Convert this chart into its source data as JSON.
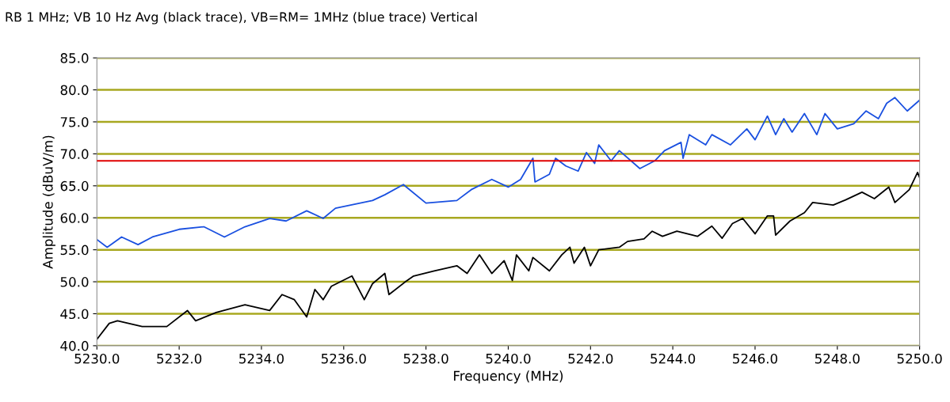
{
  "chart_data": {
    "type": "line",
    "title": "RB 1 MHz; VB 10 Hz Avg (black trace), VB=RM= 1MHz (blue trace) Vertical",
    "xlabel": "Frequency (MHz)",
    "ylabel": "Amplitude (dBuV/m)",
    "xlim": [
      5230,
      5250
    ],
    "ylim": [
      40,
      85
    ],
    "xticks": [
      {
        "value": 5230,
        "label": "5230.0"
      },
      {
        "value": 5232,
        "label": "5232.0"
      },
      {
        "value": 5234,
        "label": "5234.0"
      },
      {
        "value": 5236,
        "label": "5236.0"
      },
      {
        "value": 5238,
        "label": "5238.0"
      },
      {
        "value": 5240,
        "label": "5240.0"
      },
      {
        "value": 5242,
        "label": "5242.0"
      },
      {
        "value": 5244,
        "label": "5244.0"
      },
      {
        "value": 5246,
        "label": "5246.0"
      },
      {
        "value": 5248,
        "label": "5248.0"
      },
      {
        "value": 5250,
        "label": "5250.0"
      }
    ],
    "yticks": [
      {
        "value": 40,
        "label": "40.0"
      },
      {
        "value": 45,
        "label": "45.0"
      },
      {
        "value": 50,
        "label": "50.0"
      },
      {
        "value": 55,
        "label": "55.0"
      },
      {
        "value": 60,
        "label": "60.0"
      },
      {
        "value": 65,
        "label": "65.0"
      },
      {
        "value": 70,
        "label": "70.0"
      },
      {
        "value": 75,
        "label": "75.0"
      },
      {
        "value": 80,
        "label": "80.0"
      },
      {
        "value": 85,
        "label": "85.0"
      }
    ],
    "grid": "y",
    "ref_lines": [
      {
        "axis": "y",
        "value": 68.9,
        "color": "#e00000"
      }
    ],
    "series": [
      {
        "color": "#1a50e0",
        "x": [
          5230.0,
          5230.25,
          5230.6,
          5231.0,
          5231.35,
          5232.0,
          5232.6,
          5233.1,
          5233.6,
          5234.2,
          5234.6,
          5235.1,
          5235.5,
          5235.8,
          5236.4,
          5236.7,
          5237.0,
          5237.45,
          5238.0,
          5238.75,
          5239.1,
          5239.6,
          5240.0,
          5240.3,
          5240.6,
          5240.65,
          5241.0,
          5241.15,
          5241.4,
          5241.7,
          5241.9,
          5242.1,
          5242.2,
          5242.5,
          5242.7,
          5243.2,
          5243.56,
          5243.8,
          5244.2,
          5244.25,
          5244.4,
          5244.8,
          5244.95,
          5245.4,
          5245.8,
          5246.0,
          5246.3,
          5246.5,
          5246.7,
          5246.9,
          5247.2,
          5247.5,
          5247.7,
          5248.0,
          5248.4,
          5248.7,
          5249.0,
          5249.2,
          5249.4,
          5249.7,
          5250.0
        ],
        "values": [
          56.6,
          55.4,
          57.0,
          55.8,
          57.0,
          58.2,
          58.6,
          57.0,
          58.6,
          59.9,
          59.5,
          61.1,
          59.9,
          61.5,
          62.3,
          62.7,
          63.6,
          65.2,
          62.3,
          62.7,
          64.4,
          66.0,
          64.8,
          66.0,
          69.3,
          65.6,
          66.8,
          69.3,
          68.1,
          67.3,
          70.2,
          68.5,
          71.4,
          68.9,
          70.5,
          67.7,
          68.9,
          70.5,
          71.8,
          69.3,
          73.0,
          71.4,
          73.0,
          71.4,
          73.9,
          72.2,
          75.9,
          73.0,
          75.5,
          73.4,
          76.3,
          73.0,
          76.3,
          73.9,
          74.7,
          76.7,
          75.5,
          77.9,
          78.8,
          76.7,
          78.4
        ]
      },
      {
        "color": "#000000",
        "x": [
          5230.0,
          5230.3,
          5230.5,
          5231.1,
          5231.7,
          5232.2,
          5232.4,
          5232.9,
          5233.6,
          5234.2,
          5234.5,
          5234.8,
          5235.1,
          5235.3,
          5235.5,
          5235.7,
          5236.2,
          5236.5,
          5236.7,
          5237.0,
          5237.1,
          5237.5,
          5237.7,
          5238.2,
          5238.75,
          5239.0,
          5239.3,
          5239.6,
          5239.9,
          5240.1,
          5240.2,
          5240.5,
          5240.6,
          5241.0,
          5241.3,
          5241.5,
          5241.6,
          5241.85,
          5242.0,
          5242.2,
          5242.7,
          5242.9,
          5243.3,
          5243.5,
          5243.75,
          5244.1,
          5244.6,
          5244.95,
          5245.2,
          5245.45,
          5245.7,
          5246.0,
          5246.3,
          5246.45,
          5246.5,
          5246.85,
          5247.2,
          5247.4,
          5247.9,
          5248.2,
          5248.6,
          5248.9,
          5249.25,
          5249.4,
          5249.75,
          5249.95,
          5250.0
        ],
        "values": [
          41.0,
          43.5,
          43.9,
          43.0,
          43.0,
          45.5,
          43.9,
          45.2,
          46.4,
          45.5,
          48.0,
          47.2,
          44.5,
          48.8,
          47.2,
          49.3,
          50.9,
          47.2,
          49.7,
          51.3,
          48.0,
          50.0,
          50.9,
          51.7,
          52.5,
          51.3,
          54.2,
          51.3,
          53.3,
          50.2,
          54.2,
          51.7,
          53.8,
          51.7,
          54.2,
          55.4,
          52.9,
          55.4,
          52.5,
          55.0,
          55.4,
          56.3,
          56.7,
          57.9,
          57.1,
          57.9,
          57.1,
          58.7,
          56.8,
          59.1,
          59.9,
          57.5,
          60.3,
          60.3,
          57.3,
          59.5,
          60.8,
          62.4,
          62.0,
          62.8,
          64.0,
          63.0,
          64.8,
          62.4,
          64.4,
          67.1,
          66.3
        ]
      }
    ]
  }
}
